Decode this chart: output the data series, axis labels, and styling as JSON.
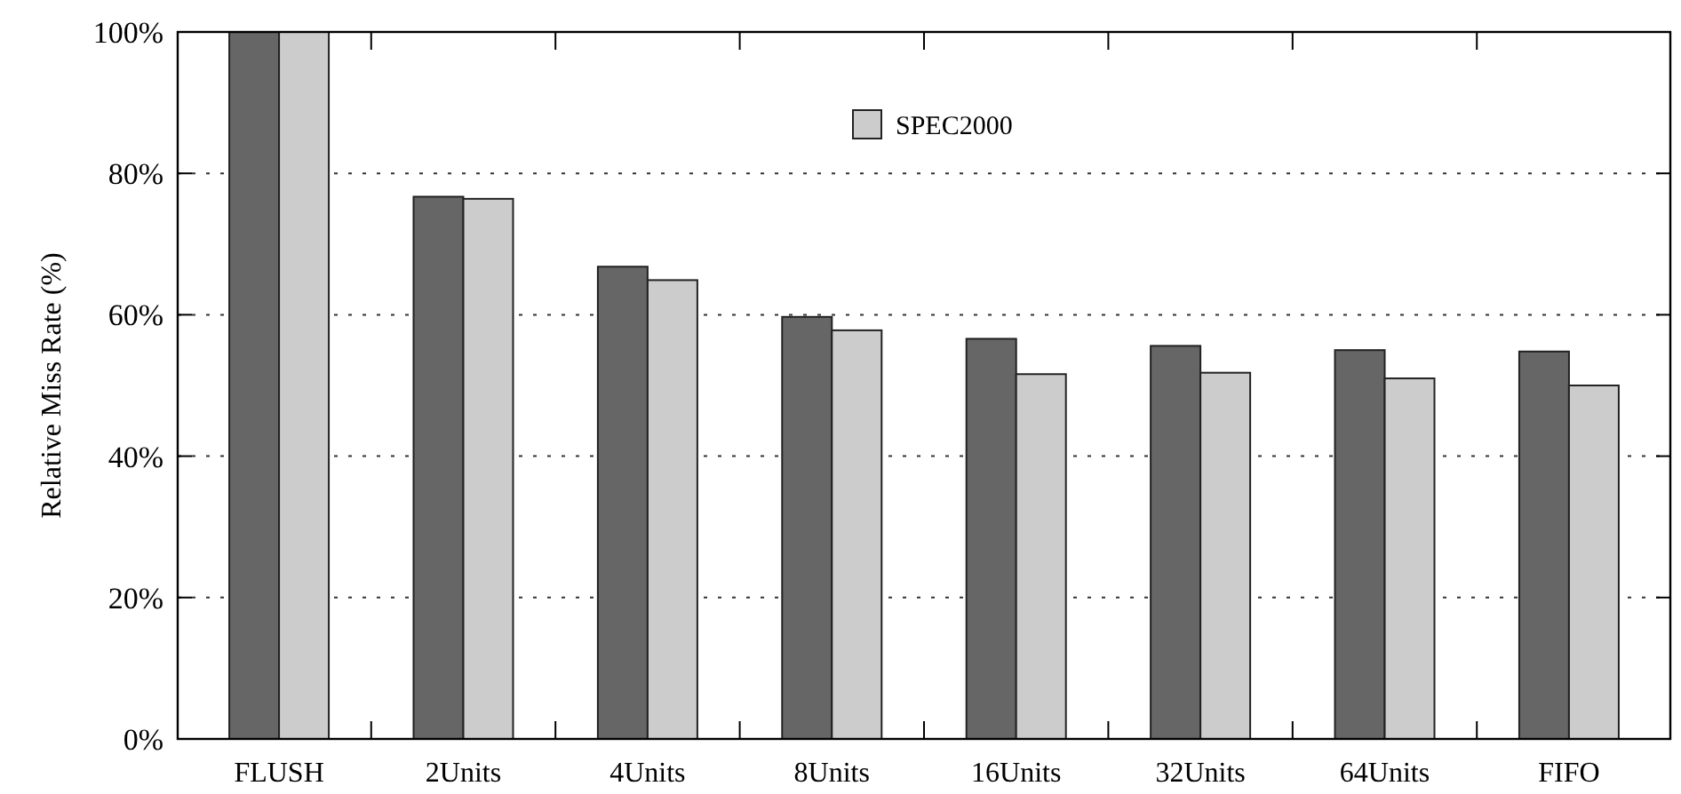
{
  "chart_data": {
    "type": "bar",
    "ylabel": "Relative Miss Rate (%)",
    "categories": [
      "FLUSH",
      "2Units",
      "4Units",
      "8Units",
      "16Units",
      "32Units",
      "64Units",
      "FIFO"
    ],
    "series": [
      {
        "color": "#666666",
        "values": [
          100,
          76.7,
          66.8,
          59.7,
          56.6,
          55.6,
          55.0,
          54.8
        ]
      },
      {
        "name": "SPEC2000",
        "color": "#cccccc",
        "values": [
          100,
          76.4,
          64.9,
          57.8,
          51.6,
          51.8,
          51.0,
          50.0
        ]
      }
    ],
    "ylim": [
      0,
      100
    ],
    "yticks": [
      {
        "value": 0,
        "label": "0%"
      },
      {
        "value": 20,
        "label": "20%"
      },
      {
        "value": 40,
        "label": "40%"
      },
      {
        "value": 60,
        "label": "60%"
      },
      {
        "value": 80,
        "label": "80%"
      },
      {
        "value": 100,
        "label": "100%"
      }
    ],
    "grid": "y",
    "legend": "top"
  }
}
